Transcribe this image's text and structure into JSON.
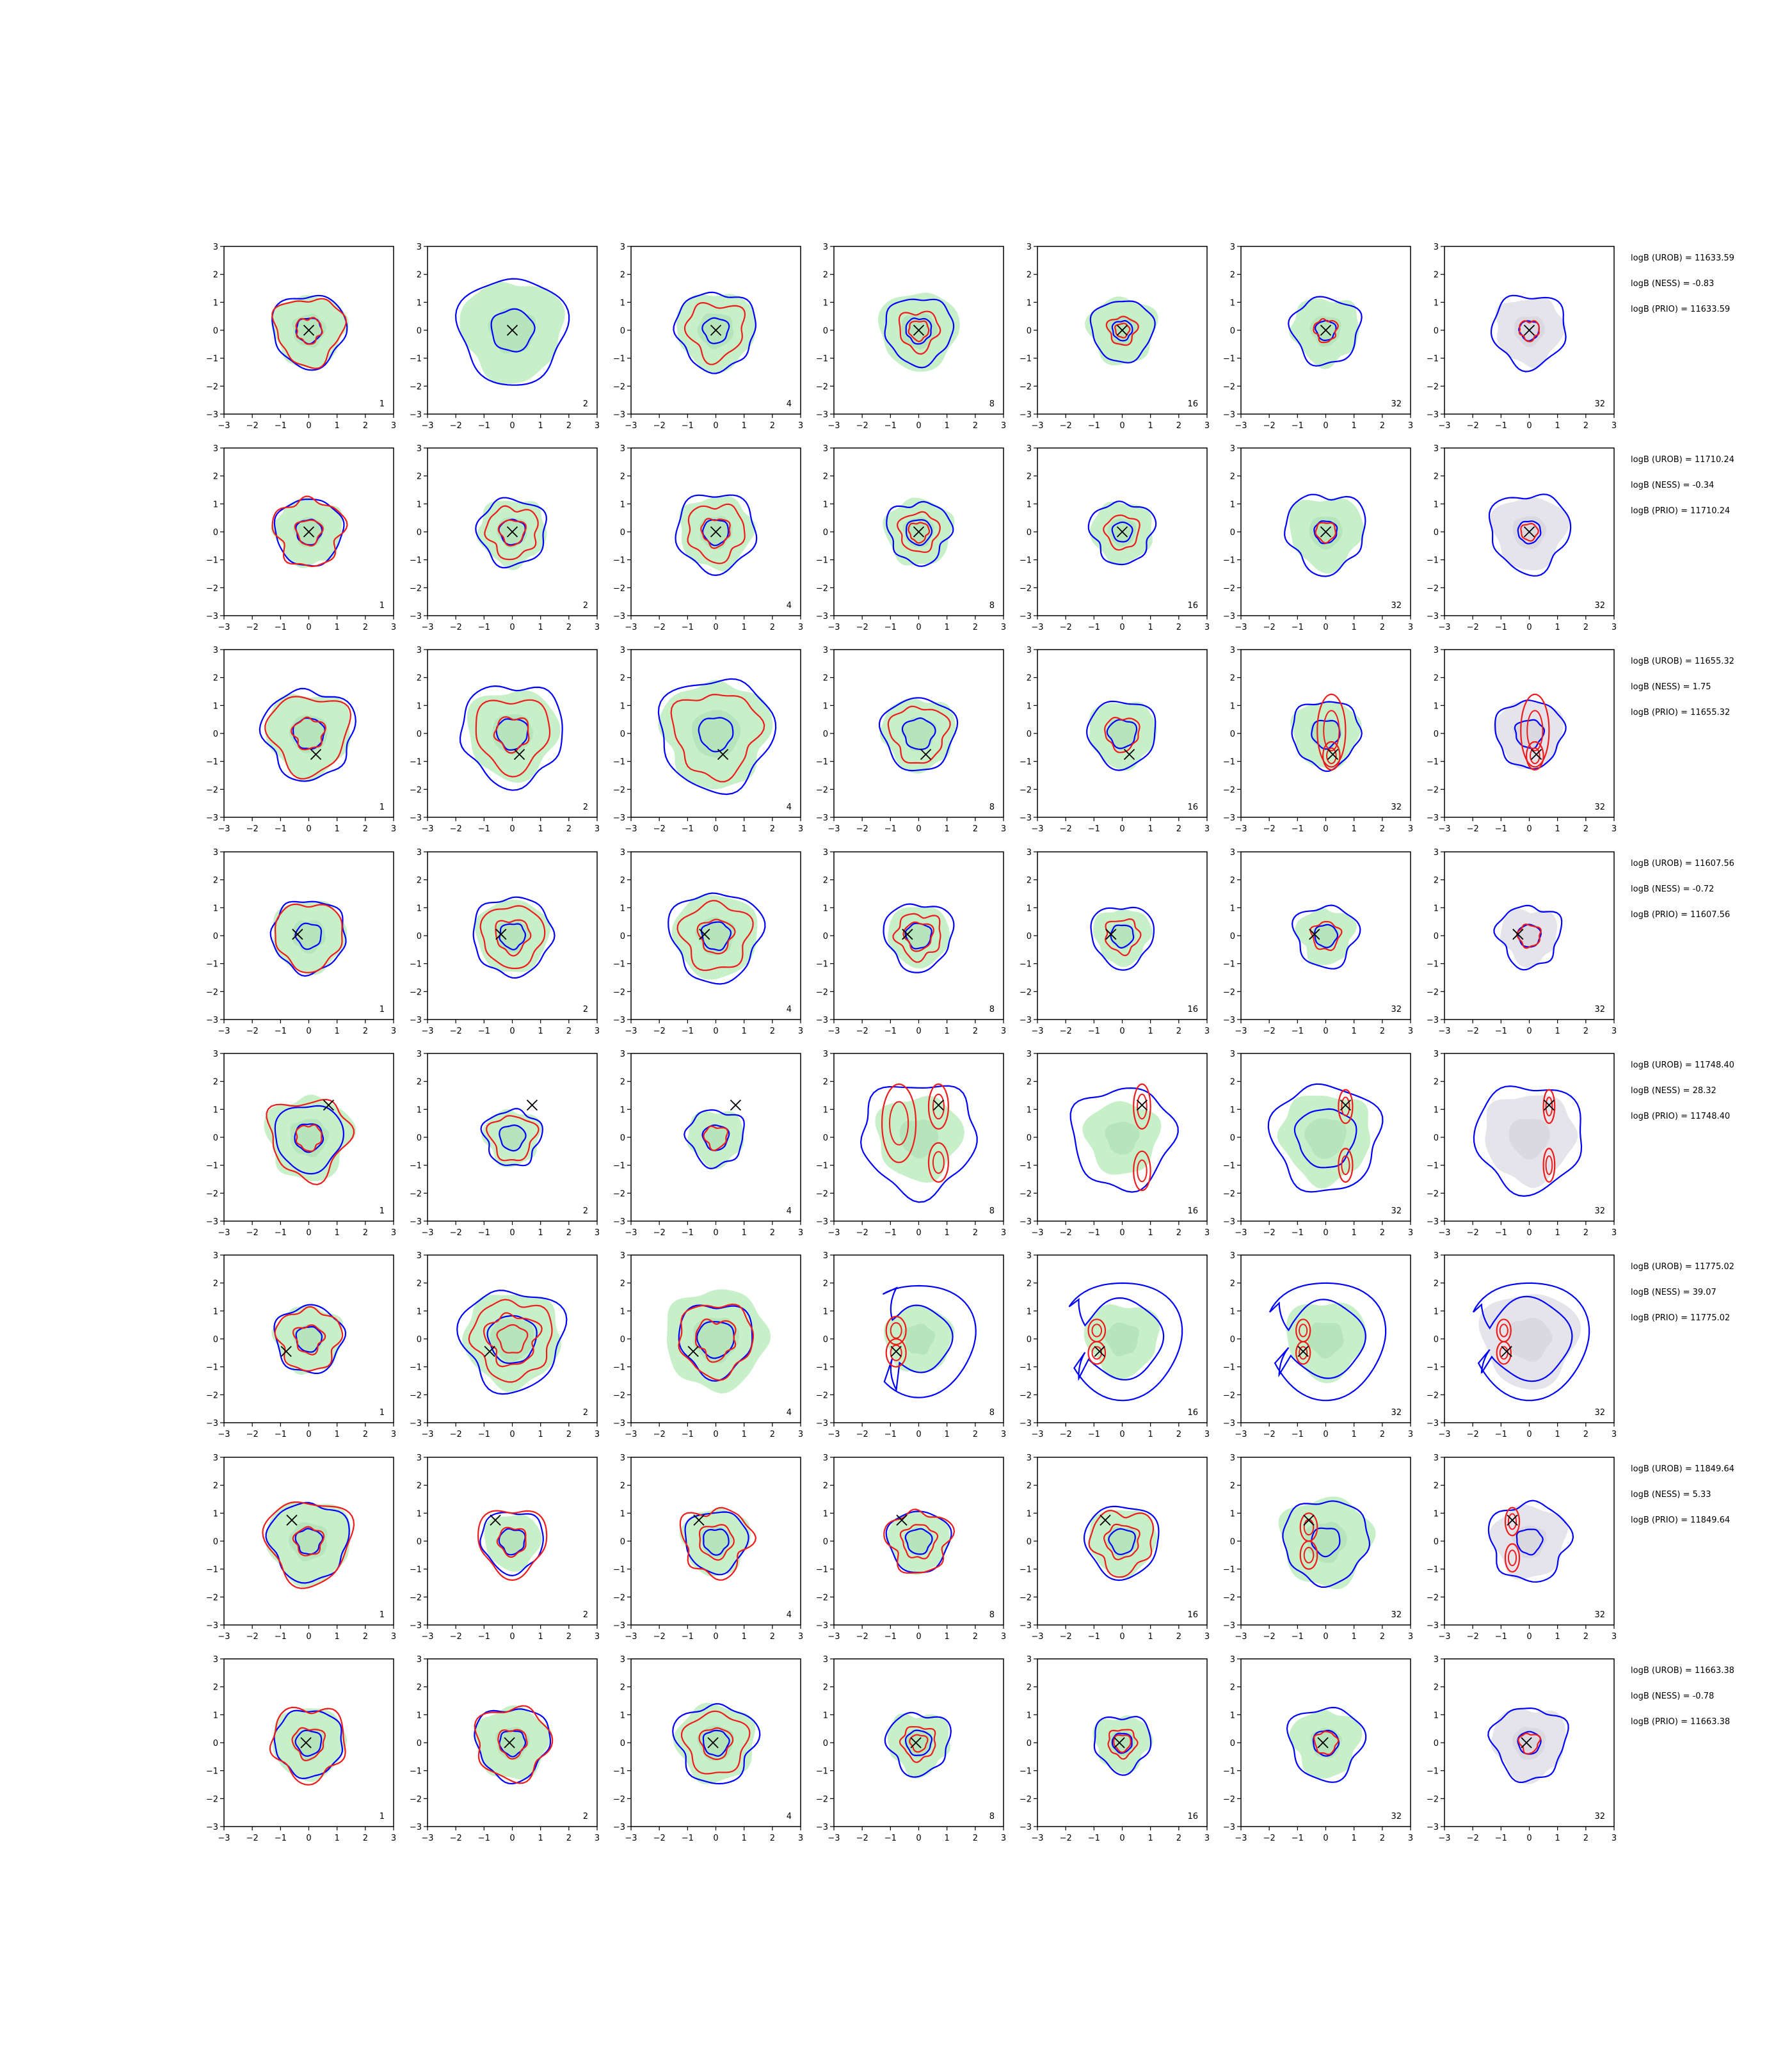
{
  "figure": {
    "axis_ticks": [
      "−3",
      "−2",
      "−1",
      "0",
      "1",
      "2",
      "3"
    ],
    "colors": {
      "blue_contour": "#0000ff",
      "red_contour": "#ee1c1c",
      "green_fill": "#c8f0c8",
      "green_fill_dark": "#a8dcb0",
      "grey_fill": "#e4e4ea",
      "grey_fill_dark": "#cfcfd6",
      "marker": "#000000"
    }
  },
  "chart_data": {
    "type": "contour-grid",
    "rows": 8,
    "cols": 7,
    "xlim": [
      -3,
      3
    ],
    "ylim": [
      -3,
      3
    ],
    "panel_labels": [
      "1",
      "2",
      "4",
      "8",
      "16",
      "32",
      "32"
    ],
    "last_column_fill": "grey",
    "marker_positions": [
      {
        "x": 0.0,
        "y": 0.0
      },
      {
        "x": 0.0,
        "y": 0.0
      },
      {
        "x": 0.25,
        "y": -0.75
      },
      {
        "x": -0.4,
        "y": 0.05
      },
      {
        "x": 0.7,
        "y": 1.15
      },
      {
        "x": -0.8,
        "y": -0.45
      },
      {
        "x": -0.6,
        "y": 0.75
      },
      {
        "x": -0.1,
        "y": 0.0
      }
    ],
    "row_stats": [
      [
        "logB (UROB) = 11633.59",
        "logB (NESS) = -0.83",
        "logB (PRIO) = 11633.59"
      ],
      [
        "logB (UROB) = 11710.24",
        "logB (NESS) = -0.34",
        "logB (PRIO) = 11710.24"
      ],
      [
        "logB (UROB) = 11655.32",
        "logB (NESS) = 1.75",
        "logB (PRIO) = 11655.32"
      ],
      [
        "logB (UROB) = 11607.56",
        "logB (NESS) = -0.72",
        "logB (PRIO) = 11607.56"
      ],
      [
        "logB (UROB) = 11748.40",
        "logB (NESS) = 28.32",
        "logB (PRIO) = 11748.40"
      ],
      [
        "logB (UROB) = 11775.02",
        "logB (NESS) = 39.07",
        "logB (PRIO) = 11775.02"
      ],
      [
        "logB (UROB) = 11849.64",
        "logB (NESS) = 5.33",
        "logB (PRIO) = 11849.64"
      ],
      [
        "logB (UROB) = 11663.38",
        "logB (NESS) = -0.78",
        "logB (PRIO) = 11663.38"
      ]
    ],
    "fill_radius": [
      [
        1.3,
        1.8,
        1.4,
        1.4,
        1.2,
        1.2,
        1.2
      ],
      [
        1.2,
        1.2,
        1.3,
        1.2,
        1.1,
        1.3,
        1.3
      ],
      [
        1.5,
        1.6,
        1.9,
        1.3,
        1.2,
        1.2,
        1.2
      ],
      [
        1.3,
        1.3,
        1.5,
        1.1,
        1.0,
        1.0,
        1.0
      ],
      [
        1.5,
        1.0,
        1.0,
        1.5,
        1.3,
        1.6,
        1.6
      ],
      [
        1.2,
        1.7,
        1.8,
        1.2,
        1.3,
        1.4,
        1.7
      ],
      [
        1.5,
        1.0,
        1.2,
        1.1,
        1.2,
        1.6,
        1.3
      ],
      [
        1.3,
        1.3,
        1.4,
        1.1,
        1.0,
        1.2,
        1.3
      ]
    ],
    "blue_outer_radius": [
      [
        1.3,
        1.9,
        1.4,
        1.2,
        1.1,
        1.2,
        1.3
      ],
      [
        1.2,
        1.2,
        1.4,
        1.1,
        1.1,
        1.4,
        1.4
      ],
      [
        1.6,
        1.8,
        2.0,
        1.3,
        1.2,
        1.2,
        1.2
      ],
      [
        1.3,
        1.4,
        1.6,
        1.2,
        1.1,
        1.1,
        1.1
      ],
      [
        1.2,
        1.0,
        1.0,
        2.0,
        1.8,
        1.9,
        1.9
      ],
      [
        1.2,
        1.8,
        1.3,
        2.0,
        2.1,
        2.1,
        2.1
      ],
      [
        1.4,
        1.1,
        1.1,
        1.1,
        1.3,
        1.5,
        1.4
      ],
      [
        1.2,
        1.3,
        1.4,
        1.1,
        1.0,
        1.3,
        1.3
      ]
    ],
    "blue_inner_radius": [
      [
        0.45,
        0.75,
        0.45,
        0.45,
        0.35,
        0.35,
        0.35
      ],
      [
        0.45,
        0.45,
        0.45,
        0.45,
        0.35,
        0.4,
        0.4
      ],
      [
        0.55,
        0.55,
        0.6,
        0.55,
        0.5,
        0.5,
        0.5
      ],
      [
        0.45,
        0.45,
        0.5,
        0.45,
        0.4,
        0.4,
        0.4
      ],
      [
        0.5,
        0.45,
        0.45,
        0.0,
        0.0,
        1.05,
        0.0
      ],
      [
        0.45,
        0.85,
        0.65,
        1.15,
        1.4,
        1.35,
        1.45
      ],
      [
        0.45,
        0.45,
        0.45,
        0.45,
        0.45,
        0.5,
        0.45
      ],
      [
        0.45,
        0.45,
        0.45,
        0.45,
        0.35,
        0.45,
        0.4
      ]
    ],
    "red_radii": [
      [
        [
          1.2,
          0.45
        ],
        [],
        [
          1.0
        ],
        [
          0.7,
          0.35
        ],
        [
          0.5,
          0.25
        ],
        [
          0.4
        ],
        [
          0.35
        ]
      ],
      [
        [
          1.2,
          0.45
        ],
        [
          0.9,
          0.45
        ],
        [
          1.0,
          0.5
        ],
        [
          0.7,
          0.35
        ],
        [
          0.6
        ],
        [
          0.35
        ],
        [
          0.3
        ]
      ],
      [
        [
          1.4,
          0.55
        ],
        [
          1.3,
          0.6
        ],
        [
          1.5
        ],
        [
          1.0
        ],
        [
          0.6
        ],
        [],
        []
      ],
      [
        [
          1.2
        ],
        [
          1.1,
          0.6
        ],
        [
          1.2,
          0.6
        ],
        [
          0.8,
          0.5
        ],
        [
          0.6
        ],
        [
          0.5
        ],
        [
          0.4
        ]
      ],
      [
        [
          1.4,
          0.45
        ],
        [
          0.8
        ],
        [
          0.4
        ],
        [],
        [],
        [],
        []
      ],
      [
        [
          1.1,
          0.5
        ],
        [
          1.4,
          0.9,
          0.5
        ],
        [
          1.3,
          0.7
        ],
        [],
        [],
        [],
        []
      ],
      [
        [
          1.5,
          0.5
        ],
        [
          1.2,
          0.5
        ],
        [
          1.2,
          0.6
        ],
        [
          1.1,
          0.6
        ],
        [
          1.1,
          0.6
        ],
        [],
        []
      ],
      [
        [
          1.3,
          0.55
        ],
        [
          1.3,
          0.5
        ],
        [
          1.1,
          0.55
        ],
        [
          0.6,
          0.3
        ],
        [
          0.5,
          0.3
        ],
        [
          0.4
        ],
        [
          0.35
        ]
      ]
    ],
    "red_ellipses": [
      [
        [],
        [],
        [],
        [],
        [],
        [],
        []
      ],
      [
        [],
        [],
        [],
        [],
        [],
        [],
        []
      ],
      [
        [],
        [],
        [],
        [],
        [],
        [
          [
            0.2,
            0.1,
            0.5,
            1.3
          ],
          [
            0.2,
            -0.8,
            0.3,
            0.5
          ]
        ],
        [
          [
            0.2,
            0.1,
            0.5,
            1.3
          ],
          [
            0.2,
            -0.8,
            0.3,
            0.5
          ]
        ]
      ],
      [
        [],
        [],
        [],
        [],
        [],
        [],
        []
      ],
      [
        [],
        [],
        [],
        [
          [
            -0.7,
            0.5,
            0.6,
            1.4
          ],
          [
            0.7,
            1.1,
            0.35,
            0.8
          ],
          [
            0.7,
            -0.9,
            0.35,
            0.7
          ]
        ],
        [
          [
            0.7,
            1.1,
            0.3,
            0.8
          ],
          [
            0.7,
            -1.2,
            0.3,
            0.7
          ]
        ],
        [
          [
            0.7,
            1.1,
            0.25,
            0.6
          ],
          [
            0.7,
            -1.0,
            0.25,
            0.6
          ]
        ],
        [
          [
            0.7,
            1.1,
            0.2,
            0.6
          ],
          [
            0.7,
            -1.0,
            0.2,
            0.6
          ]
        ]
      ],
      [
        [],
        [],
        [],
        [
          [
            -0.8,
            0.3,
            0.35,
            0.5
          ],
          [
            -0.8,
            -0.5,
            0.35,
            0.5
          ]
        ],
        [
          [
            -0.9,
            0.3,
            0.3,
            0.4
          ],
          [
            -0.9,
            -0.5,
            0.3,
            0.4
          ]
        ],
        [
          [
            -0.8,
            0.3,
            0.25,
            0.4
          ],
          [
            -0.8,
            -0.5,
            0.25,
            0.4
          ]
        ],
        [
          [
            -0.9,
            0.3,
            0.25,
            0.4
          ],
          [
            -0.9,
            -0.5,
            0.25,
            0.4
          ]
        ]
      ],
      [
        [],
        [],
        [],
        [],
        [],
        [
          [
            -0.6,
            0.5,
            0.3,
            0.5
          ],
          [
            -0.6,
            -0.5,
            0.3,
            0.5
          ]
        ],
        [
          [
            -0.6,
            0.7,
            0.25,
            0.5
          ],
          [
            -0.6,
            -0.6,
            0.25,
            0.5
          ]
        ]
      ],
      [
        [],
        [],
        [],
        [],
        [],
        [],
        []
      ]
    ]
  }
}
